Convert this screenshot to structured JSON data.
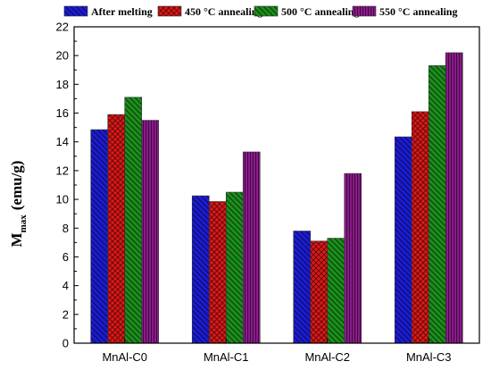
{
  "chart_data": {
    "type": "bar",
    "categories": [
      "MnAl-C0",
      "MnAl-C1",
      "MnAl-C2",
      "MnAl-C3"
    ],
    "series": [
      {
        "name": "After melting",
        "values": [
          14.85,
          10.25,
          7.8,
          14.35
        ],
        "color": "#1c1cd4",
        "pattern": "hatch-back"
      },
      {
        "name": "450 °C annealing",
        "values": [
          15.9,
          9.85,
          7.1,
          16.1
        ],
        "color": "#e01818",
        "pattern": "crosshatch"
      },
      {
        "name": "500 °C annealing",
        "values": [
          17.1,
          10.5,
          7.3,
          19.3
        ],
        "color": "#1b8f1b",
        "pattern": "hatch-back"
      },
      {
        "name": "550 °C annealing",
        "values": [
          15.5,
          13.3,
          11.8,
          20.2
        ],
        "color": "#8b1a8b",
        "pattern": "vertical"
      }
    ],
    "ylabel_main": "M",
    "ylabel_sub": "max",
    "ylabel_unit": "(emu/g)",
    "ylim": [
      0,
      22
    ],
    "yticks": [
      "0",
      "2",
      "4",
      "6",
      "8",
      "10",
      "12",
      "14",
      "16",
      "18",
      "20",
      "22"
    ],
    "legend_position": "top"
  }
}
